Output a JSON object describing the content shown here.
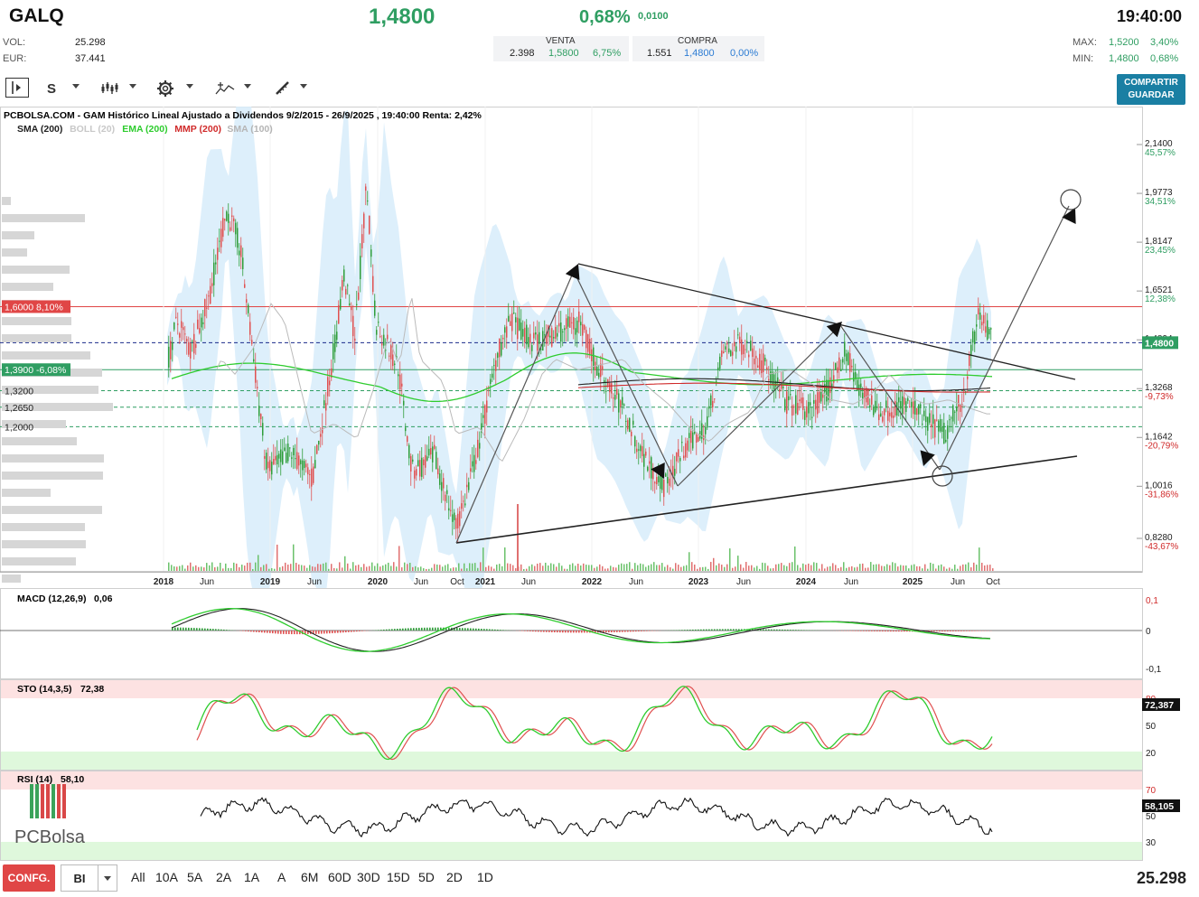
{
  "header": {
    "ticker": "GALQ",
    "last_price": "1,4800",
    "change_pct": "0,68%",
    "change_abs": "0,0100",
    "clock": "19:40:00",
    "vol_label": "VOL:",
    "vol_value": "25.298",
    "eur_label": "EUR:",
    "eur_value": "37.441",
    "venta_label": "VENTA",
    "venta_qty": "2.398",
    "venta_price": "1,5800",
    "venta_pct": "6,75%",
    "compra_label": "COMPRA",
    "compra_qty": "1.551",
    "compra_price": "1,4800",
    "compra_pct": "0,00%",
    "max_label": "MAX:",
    "max_price": "1,5200",
    "max_pct": "3,40%",
    "min_label": "MIN:",
    "min_price": "1,4800",
    "min_pct": "0,68%"
  },
  "toolbar": {
    "period_letter": "S",
    "share_line1": "COMPARTIR",
    "share_line2": "GUARDAR",
    "icons": [
      "sidebar-toggle-icon",
      "candles-icon",
      "gear-icon",
      "drawing-tools-icon",
      "pencil-ruler-icon"
    ]
  },
  "chart": {
    "title": "PCBOLSA.COM - GAM Histórico Lineal Ajustado a Dividendos 9/2/2015 - 26/9/2025 , 19:40:00 Renta: 2,42%",
    "indicators": [
      {
        "label": "SMA (200)",
        "color": "#222222"
      },
      {
        "label": "BOLL (20)",
        "color": "#c8c8c8"
      },
      {
        "label": "EMA (200)",
        "color": "#2ecc2e"
      },
      {
        "label": "MMP (200)",
        "color": "#d02a2a"
      },
      {
        "label": "SMA (100)",
        "color": "#b5b5b5"
      }
    ],
    "price_ticks": [
      {
        "price": "2,1400",
        "pct": "45,57%",
        "pct_color": "#2f9e62"
      },
      {
        "price": "1,9773",
        "pct": "34,51%",
        "pct_color": "#2f9e62"
      },
      {
        "price": "1,8147",
        "pct": "23,45%",
        "pct_color": "#2f9e62"
      },
      {
        "price": "1,6521",
        "pct": "12,38%",
        "pct_color": "#2f9e62"
      },
      {
        "price": "1,4894",
        "pct": "",
        "pct_color": "#2f9e62"
      },
      {
        "price": "1,3268",
        "pct": "-9,73%",
        "pct_color": "#d02a2a"
      },
      {
        "price": "1,1642",
        "pct": "-20,79%",
        "pct_color": "#d02a2a"
      },
      {
        "price": "1,0016",
        "pct": "-31,86%",
        "pct_color": "#d02a2a"
      },
      {
        "price": "0,8280",
        "pct": "-43,67%",
        "pct_color": "#d02a2a"
      }
    ],
    "current_price_tag": "1,4800",
    "left_tags": [
      {
        "text": "1,6000  8,10%",
        "bg": "#e04646",
        "color": "#ffffff"
      },
      {
        "text": "1,3900  -6,08%",
        "bg": "#2f9e62",
        "color": "#ffffff"
      },
      {
        "text": "1,3200",
        "bg": "",
        "color": "#222222"
      },
      {
        "text": "1,2650",
        "bg": "",
        "color": "#222222"
      },
      {
        "text": "1,2000",
        "bg": "",
        "color": "#222222"
      }
    ],
    "x_labels": [
      "2018",
      "Jun",
      "2019",
      "Jun",
      "2020",
      "Jun",
      "Oct",
      "2021",
      "Jun",
      "2022",
      "Jun",
      "2023",
      "Jun",
      "2024",
      "Jun",
      "2025",
      "Jun",
      "Oct"
    ]
  },
  "macd": {
    "label": "MACD (12,26,9)",
    "value": "0,06",
    "ticks": [
      "0,1",
      "0",
      "-0,1"
    ]
  },
  "sto": {
    "label": "STO (14,3,5)",
    "value": "72,38",
    "tag": "72,387",
    "ticks": [
      "80",
      "50",
      "20"
    ]
  },
  "rsi": {
    "label": "RSI (14)",
    "value": "58,10",
    "tag": "58,105",
    "ticks": [
      "70",
      "50",
      "30"
    ]
  },
  "logo": {
    "text": "PCBolsa"
  },
  "footer": {
    "confg": "CONFG.",
    "bi": "BI",
    "periods": [
      "All",
      "10A",
      "5A",
      "2A",
      "1A",
      "A",
      "6M",
      "60D",
      "30D",
      "15D",
      "5D",
      "2D",
      "1D"
    ],
    "volume": "25.298"
  }
}
